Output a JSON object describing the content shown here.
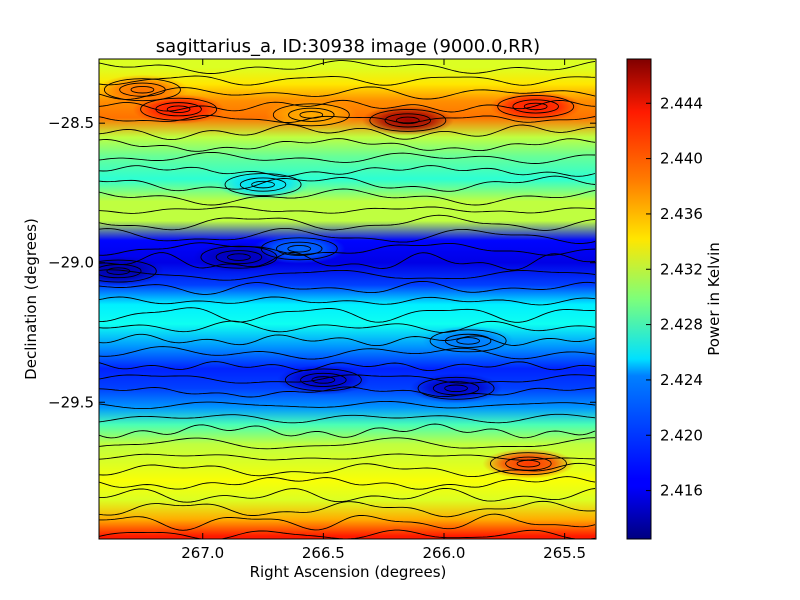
{
  "chart_data": {
    "type": "heatmap",
    "title": "sagittarius_a, ID:30938 image (9000.0,RR)",
    "xlabel": "Right Ascension (degrees)",
    "ylabel": "Declination (degrees)",
    "colorbar_label": "Power in Kelvin",
    "xlim": [
      267.43,
      265.37
    ],
    "ylim": [
      -29.99,
      -28.27
    ],
    "x_ticks": [
      {
        "value": 267.0,
        "label": "267.0"
      },
      {
        "value": 266.5,
        "label": "266.5"
      },
      {
        "value": 266.0,
        "label": "266.0"
      },
      {
        "value": 265.5,
        "label": "265.5"
      }
    ],
    "y_ticks": [
      {
        "value": -28.5,
        "label": "−28.5"
      },
      {
        "value": -29.0,
        "label": "−29.0"
      },
      {
        "value": -29.5,
        "label": "−29.5"
      }
    ],
    "colorbar_range": [
      2.4125,
      2.4472
    ],
    "colorbar_ticks": [
      {
        "value": 2.444,
        "label": "2.444"
      },
      {
        "value": 2.44,
        "label": "2.440"
      },
      {
        "value": 2.436,
        "label": "2.436"
      },
      {
        "value": 2.432,
        "label": "2.432"
      },
      {
        "value": 2.428,
        "label": "2.428"
      },
      {
        "value": 2.424,
        "label": "2.424"
      },
      {
        "value": 2.42,
        "label": "2.420"
      },
      {
        "value": 2.416,
        "label": "2.416"
      }
    ],
    "colormap": "jet",
    "contours": true,
    "band_profile": [
      {
        "dec": -28.3,
        "value": 2.433
      },
      {
        "dec": -28.36,
        "value": 2.435
      },
      {
        "dec": -28.42,
        "value": 2.438
      },
      {
        "dec": -28.48,
        "value": 2.439
      },
      {
        "dec": -28.55,
        "value": 2.432
      },
      {
        "dec": -28.62,
        "value": 2.429
      },
      {
        "dec": -28.7,
        "value": 2.427
      },
      {
        "dec": -28.78,
        "value": 2.432
      },
      {
        "dec": -28.85,
        "value": 2.432
      },
      {
        "dec": -28.92,
        "value": 2.417
      },
      {
        "dec": -29.0,
        "value": 2.416
      },
      {
        "dec": -29.08,
        "value": 2.419
      },
      {
        "dec": -29.15,
        "value": 2.425
      },
      {
        "dec": -29.22,
        "value": 2.426
      },
      {
        "dec": -29.3,
        "value": 2.422
      },
      {
        "dec": -29.38,
        "value": 2.418
      },
      {
        "dec": -29.45,
        "value": 2.419
      },
      {
        "dec": -29.52,
        "value": 2.422
      },
      {
        "dec": -29.58,
        "value": 2.428
      },
      {
        "dec": -29.65,
        "value": 2.432
      },
      {
        "dec": -29.72,
        "value": 2.433
      },
      {
        "dec": -29.78,
        "value": 2.434
      },
      {
        "dec": -29.85,
        "value": 2.433
      },
      {
        "dec": -29.92,
        "value": 2.437
      },
      {
        "dec": -29.98,
        "value": 2.442
      }
    ],
    "hotspots": [
      {
        "ra": 266.15,
        "dec": -28.49,
        "value": 2.446
      },
      {
        "ra": 265.62,
        "dec": -28.44,
        "value": 2.442
      },
      {
        "ra": 267.1,
        "dec": -28.45,
        "value": 2.442
      },
      {
        "ra": 267.25,
        "dec": -28.38,
        "value": 2.439
      },
      {
        "ra": 265.65,
        "dec": -29.72,
        "value": 2.441
      },
      {
        "ra": 266.55,
        "dec": -28.47,
        "value": 2.437
      },
      {
        "ra": 266.75,
        "dec": -28.72,
        "value": 2.4245
      },
      {
        "ra": 266.6,
        "dec": -28.95,
        "value": 2.4205
      },
      {
        "ra": 265.95,
        "dec": -29.45,
        "value": 2.415
      },
      {
        "ra": 267.35,
        "dec": -29.03,
        "value": 2.414
      },
      {
        "ra": 266.5,
        "dec": -29.42,
        "value": 2.415
      },
      {
        "ra": 266.85,
        "dec": -28.98,
        "value": 2.4145
      },
      {
        "ra": 265.9,
        "dec": -29.28,
        "value": 2.421
      }
    ]
  }
}
